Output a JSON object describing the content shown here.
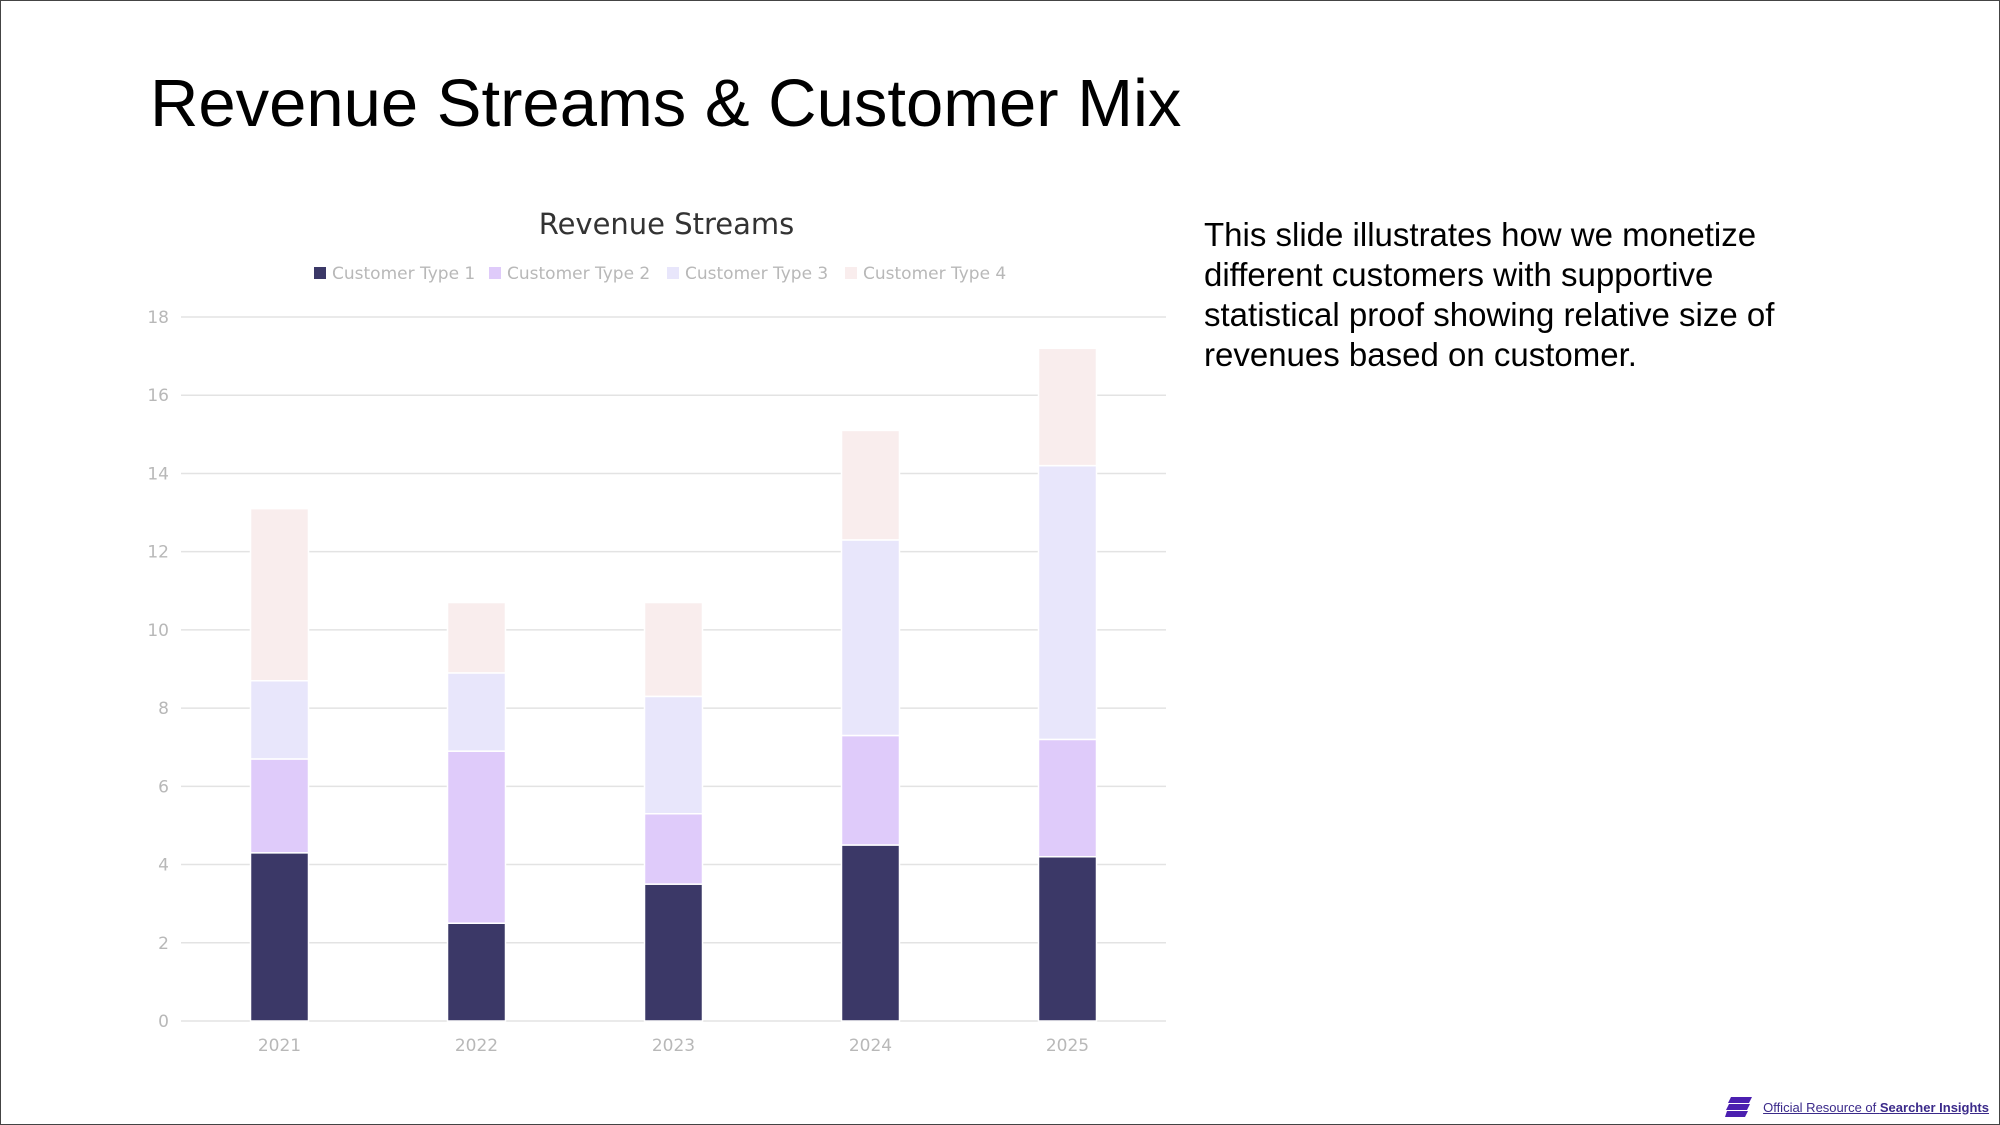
{
  "slide": {
    "title": "Revenue Streams & Customer Mix",
    "description": "This slide illustrates how we monetize different customers with supportive statistical proof showing relative size of revenues based on customer.",
    "footer": {
      "prefix": "Official Resource of ",
      "brand": "Searcher Insights"
    }
  },
  "colors": {
    "series": [
      "#3b3867",
      "#dfcbfa",
      "#e8e6fb",
      "#f9eded"
    ],
    "grid": "#e3e3e3",
    "tick_text": "#b8b8b8",
    "title_text": "#333333",
    "logo": "#4b1fb0"
  },
  "chart_data": {
    "type": "bar",
    "stacked": true,
    "title": "Revenue Streams",
    "categories": [
      "2021",
      "2022",
      "2023",
      "2024",
      "2025"
    ],
    "series": [
      {
        "name": "Customer Type 1",
        "values": [
          4.3,
          2.5,
          3.5,
          4.5,
          4.2
        ]
      },
      {
        "name": "Customer Type 2",
        "values": [
          2.4,
          4.4,
          1.8,
          2.8,
          3.0
        ]
      },
      {
        "name": "Customer Type 3",
        "values": [
          2.0,
          2.0,
          3.0,
          5.0,
          7.0
        ]
      },
      {
        "name": "Customer Type 4",
        "values": [
          4.4,
          1.8,
          2.4,
          2.8,
          3.0
        ]
      }
    ],
    "ylim": [
      0,
      18
    ],
    "yticks": [
      0,
      2,
      4,
      6,
      8,
      10,
      12,
      14,
      16,
      18
    ],
    "grid": true,
    "legend": "top-center"
  }
}
